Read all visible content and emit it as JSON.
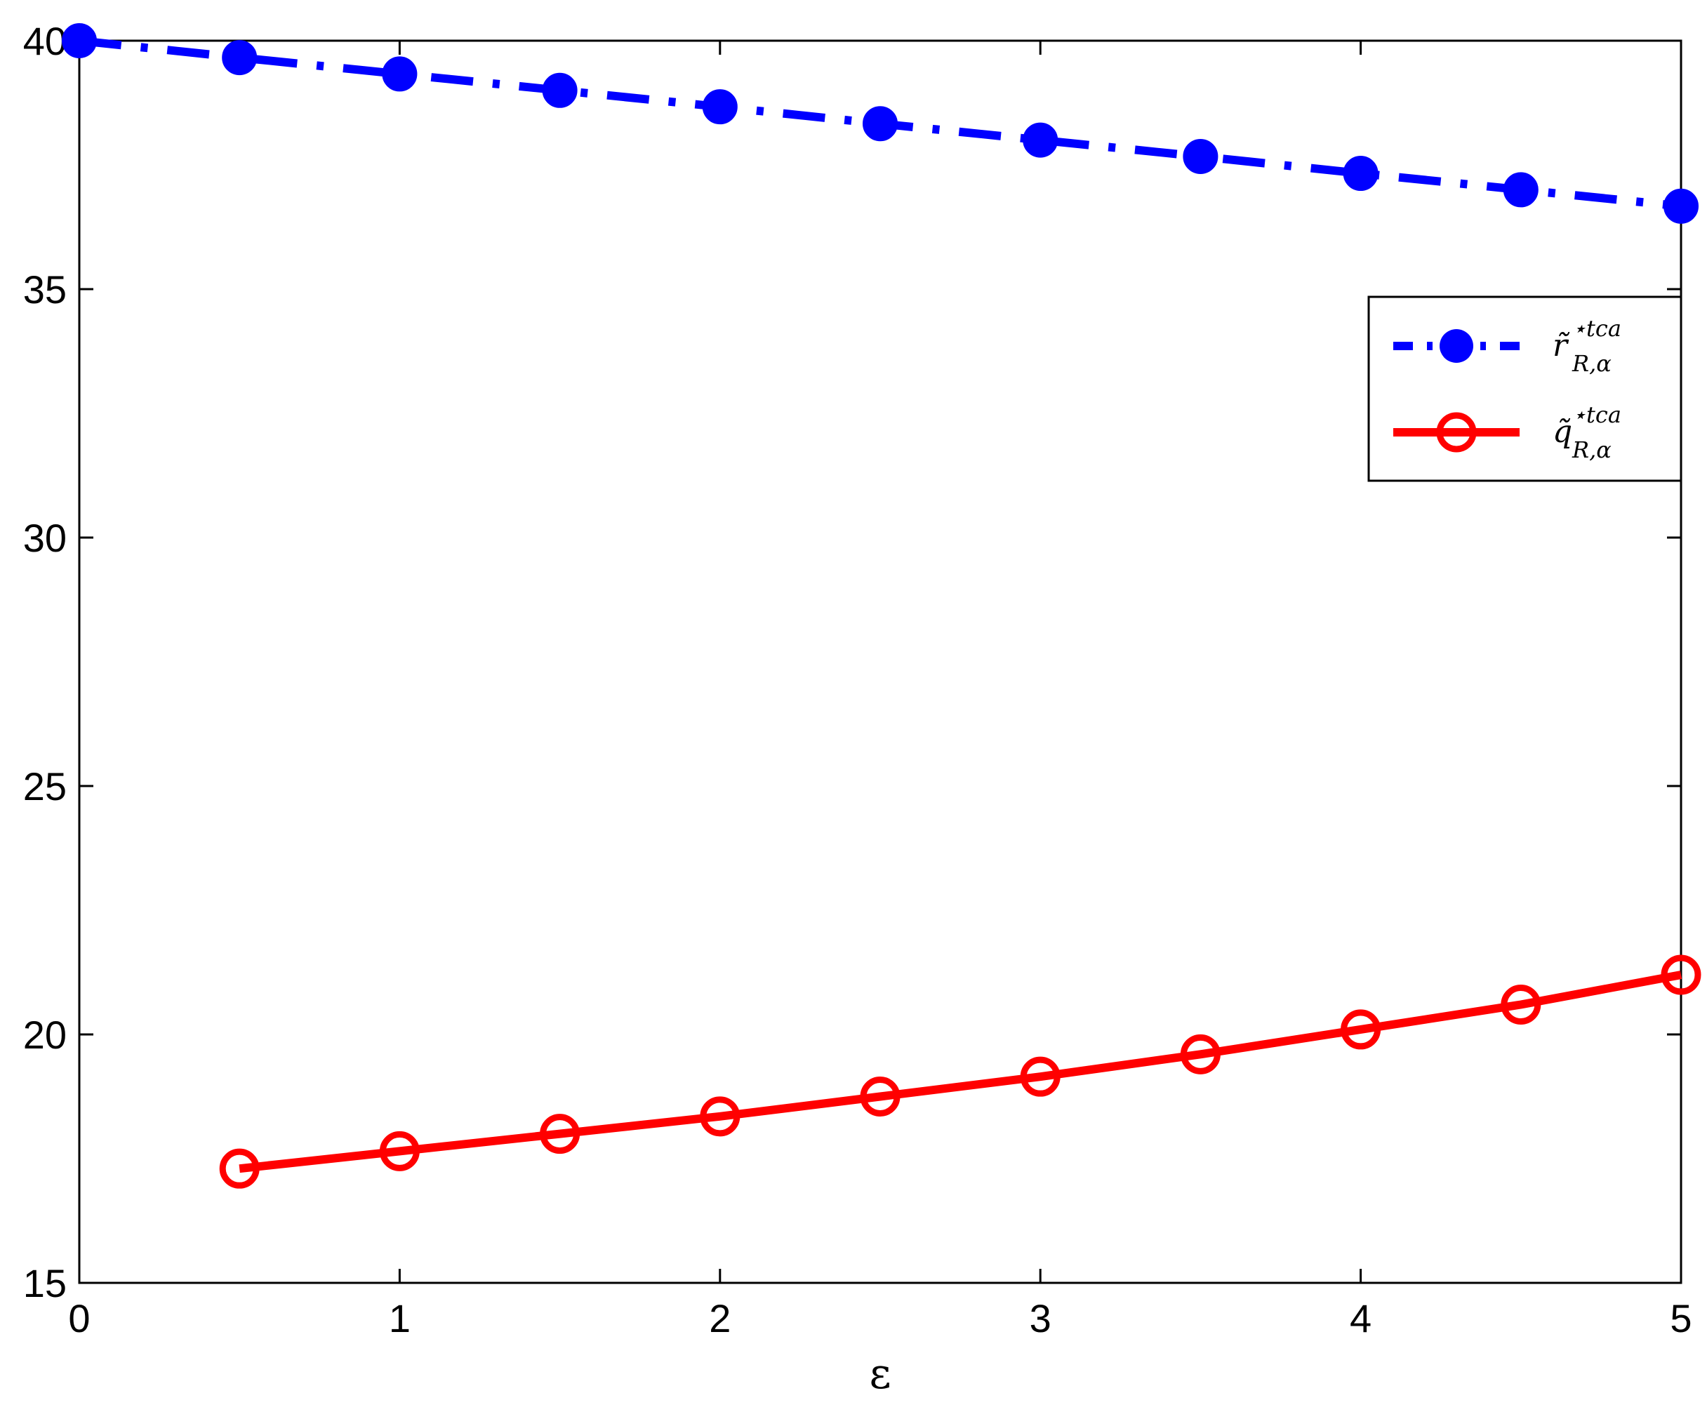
{
  "chart_data": {
    "type": "line",
    "xlabel": "ε",
    "ylabel": "",
    "title": "",
    "xlim": [
      0,
      5
    ],
    "ylim": [
      15,
      40
    ],
    "x_ticks": [
      0,
      1,
      2,
      3,
      4,
      5
    ],
    "y_ticks": [
      15,
      20,
      25,
      30,
      35,
      40
    ],
    "grid": false,
    "legend_position": "top-right",
    "series": [
      {
        "legend_base": "r̃",
        "legend_sup": "⋆tca",
        "legend_sub": "R,α",
        "color": "#0000ff",
        "line_style": "dash-dot",
        "marker": "filled-circle",
        "x": [
          0,
          0.5,
          1,
          1.5,
          2,
          2.5,
          3,
          3.5,
          4,
          4.5,
          5
        ],
        "y": [
          40.0,
          39.66,
          39.33,
          39.0,
          38.67,
          38.33,
          38.0,
          37.67,
          37.33,
          37.0,
          36.67
        ]
      },
      {
        "legend_base": "q̃",
        "legend_sup": "⋆tca",
        "legend_sub": "R,α",
        "color": "#ff0000",
        "line_style": "solid",
        "marker": "open-circle",
        "x": [
          0.5,
          1,
          1.5,
          2,
          2.5,
          3,
          3.5,
          4,
          4.5,
          5
        ],
        "y": [
          17.3,
          17.65,
          18.0,
          18.35,
          18.75,
          19.15,
          19.6,
          20.1,
          20.6,
          21.2
        ]
      }
    ]
  }
}
